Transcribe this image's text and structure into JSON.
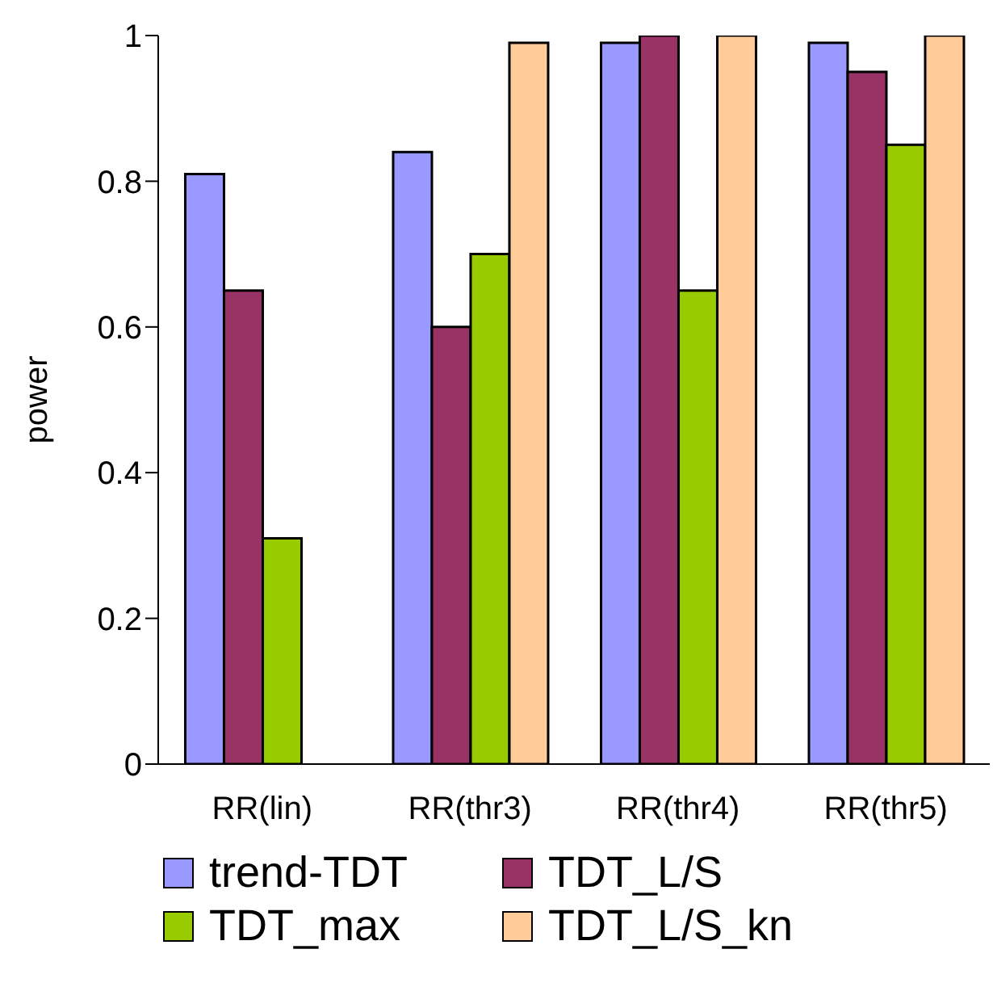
{
  "chart_data": {
    "type": "bar",
    "ylabel": "power",
    "categories": [
      "RR(lin)",
      "RR(thr3)",
      "RR(thr4)",
      "RR(thr5)"
    ],
    "series": [
      {
        "name": "trend-TDT",
        "color": "#9999ff",
        "values": [
          0.81,
          0.84,
          0.99,
          0.99
        ]
      },
      {
        "name": "TDT_L/S",
        "color": "#993366",
        "values": [
          0.65,
          0.6,
          1,
          0.95
        ]
      },
      {
        "name": "TDT_max",
        "color": "#99cc00",
        "values": [
          0.31,
          0.7,
          0.65,
          0.85
        ]
      },
      {
        "name": "TDT_L/S_kn",
        "color": "#ffcc99",
        "values": [
          null,
          0.99,
          1,
          1
        ]
      }
    ],
    "ylim": [
      0,
      1
    ],
    "yticks": [
      0,
      0.2,
      0.4,
      0.6,
      0.8,
      1
    ],
    "grid": false,
    "legend": "bottom"
  }
}
